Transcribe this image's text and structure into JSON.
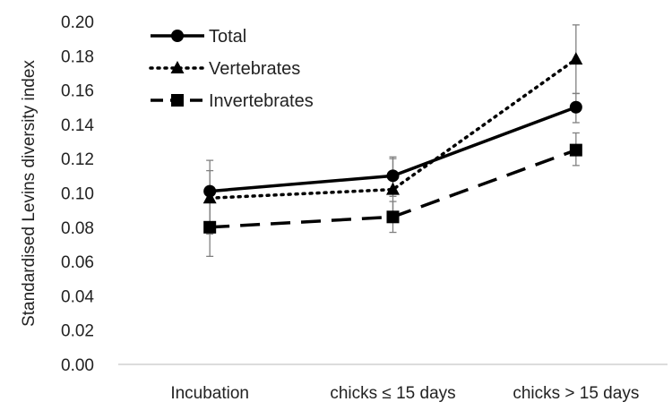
{
  "chart_data": {
    "type": "line",
    "title": "",
    "xlabel": "",
    "ylabel": "Standardised Levins diversity index",
    "categories": [
      "Incubation",
      "chicks ≤ 15 days",
      "chicks > 15 days"
    ],
    "ylim": [
      0,
      0.2
    ],
    "yticks": [
      "0.00",
      "0.02",
      "0.04",
      "0.06",
      "0.08",
      "0.10",
      "0.12",
      "0.14",
      "0.16",
      "0.18",
      "0.20"
    ],
    "grid": false,
    "legend_position": "top-left",
    "series": [
      {
        "name": "Total",
        "line_style": "solid",
        "marker": "circle",
        "values": [
          0.101,
          0.11,
          0.15
        ],
        "error_low": [
          0.082,
          0.098,
          0.141
        ],
        "error_high": [
          0.119,
          0.121,
          0.158
        ]
      },
      {
        "name": "Vertebrates",
        "line_style": "dotted",
        "marker": "triangle",
        "values": [
          0.097,
          0.102,
          0.178
        ],
        "error_low": [
          0.076,
          0.083,
          0.158
        ],
        "error_high": [
          0.113,
          0.12,
          0.198
        ]
      },
      {
        "name": "Invertebrates",
        "line_style": "dashed",
        "marker": "square",
        "values": [
          0.08,
          0.086,
          0.125
        ],
        "error_low": [
          0.063,
          0.077,
          0.116
        ],
        "error_high": [
          0.096,
          0.095,
          0.135
        ]
      }
    ],
    "colors": {
      "line": "#000000",
      "error_bar": "#808080",
      "axis": "#d0d0d0"
    }
  }
}
